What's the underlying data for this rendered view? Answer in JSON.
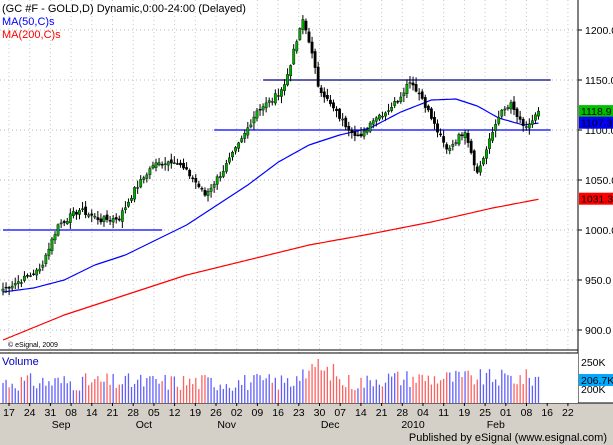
{
  "chart_data": [
    {
      "type": "candlestick",
      "title": "(GC #F - GOLD,D) Dynamic,0:00-24:00 (Delayed)",
      "indicators": [
        {
          "name": "MA(50,C)s",
          "color": "#0000ff",
          "last": "1107.3"
        },
        {
          "name": "MA(200,C)s",
          "color": "#ff0000",
          "last": "1031.3"
        }
      ],
      "last_price": "1118.9",
      "ylim": [
        880,
        1230
      ],
      "y_ticks": [
        "1200.0",
        "1150.0",
        "1100.0",
        "1050.0",
        "1000.0",
        "950.0",
        "900.0"
      ],
      "y_tick_values": [
        1200,
        1150,
        1100,
        1050,
        1000,
        950,
        900
      ],
      "watermark": "© eSignal, 2009",
      "horizontal_lines": [
        {
          "value": 1000,
          "from_bar": 0,
          "to_bar": 52,
          "color": "#0000ff"
        },
        {
          "value": 1100,
          "from_bar": 69,
          "to_bar": 179,
          "color": "#0000ff"
        },
        {
          "value": 1150,
          "from_bar": 85,
          "to_bar": 179,
          "color": "#000080"
        }
      ],
      "x_day_labels": [
        "17",
        "24",
        "31",
        "08",
        "14",
        "21",
        "28",
        "05",
        "12",
        "19",
        "26",
        "02",
        "09",
        "16",
        "23",
        "30",
        "07",
        "14",
        "21",
        "28",
        "04",
        "11",
        "19",
        "25",
        "01",
        "08",
        "16",
        "22"
      ],
      "x_month_labels": [
        "Sep",
        "Oct",
        "Nov",
        "Dec",
        "2010",
        "Feb"
      ],
      "month_label_days": [
        3,
        7,
        11,
        16,
        20,
        24
      ],
      "anchors": [
        [
          0,
          941
        ],
        [
          6,
          950
        ],
        [
          12,
          960
        ],
        [
          18,
          1005
        ],
        [
          25,
          1020
        ],
        [
          32,
          1010
        ],
        [
          38,
          1012
        ],
        [
          43,
          1040
        ],
        [
          49,
          1065
        ],
        [
          56,
          1070
        ],
        [
          62,
          1052
        ],
        [
          66,
          1035
        ],
        [
          72,
          1060
        ],
        [
          78,
          1090
        ],
        [
          83,
          1120
        ],
        [
          88,
          1130
        ],
        [
          92,
          1145
        ],
        [
          95,
          1178
        ],
        [
          98,
          1210
        ],
        [
          100,
          1190
        ],
        [
          103,
          1145
        ],
        [
          107,
          1125
        ],
        [
          112,
          1105
        ],
        [
          117,
          1092
        ],
        [
          121,
          1112
        ],
        [
          125,
          1118
        ],
        [
          129,
          1130
        ],
        [
          133,
          1150
        ],
        [
          137,
          1132
        ],
        [
          141,
          1105
        ],
        [
          145,
          1080
        ],
        [
          151,
          1100
        ],
        [
          155,
          1057
        ],
        [
          158,
          1080
        ],
        [
          162,
          1115
        ],
        [
          166,
          1125
        ],
        [
          170,
          1102
        ],
        [
          173,
          1108
        ],
        [
          175,
          1118.9
        ]
      ],
      "ma50_anchors": [
        [
          0,
          938
        ],
        [
          10,
          942
        ],
        [
          20,
          950
        ],
        [
          30,
          965
        ],
        [
          40,
          975
        ],
        [
          50,
          990
        ],
        [
          60,
          1005
        ],
        [
          70,
          1025
        ],
        [
          80,
          1045
        ],
        [
          90,
          1068
        ],
        [
          100,
          1085
        ],
        [
          110,
          1095
        ],
        [
          120,
          1102
        ],
        [
          130,
          1118
        ],
        [
          140,
          1130
        ],
        [
          148,
          1131
        ],
        [
          155,
          1124
        ],
        [
          162,
          1112
        ],
        [
          170,
          1105
        ],
        [
          176,
          1107.3
        ]
      ],
      "ma200_anchors": [
        [
          0,
          890
        ],
        [
          20,
          915
        ],
        [
          40,
          935
        ],
        [
          60,
          955
        ],
        [
          80,
          970
        ],
        [
          100,
          985
        ],
        [
          120,
          996
        ],
        [
          140,
          1008
        ],
        [
          160,
          1022
        ],
        [
          176,
          1031.3
        ]
      ],
      "volume_panel": {
        "label": "Volume",
        "ticks": [
          "250K",
          "200K"
        ],
        "last": "206.7K"
      }
    }
  ],
  "footer": "Published by eSignal (www.esignal.com)"
}
